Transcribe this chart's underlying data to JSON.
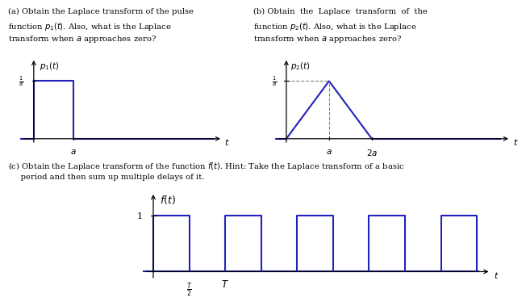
{
  "bg_color": "#ffffff",
  "text_color": "#000000",
  "plot_color": "#2222bb",
  "fig_width": 7.0,
  "fig_height": 3.57,
  "text_a_line1": "(a) Obtain the Laplace transform of the pulse",
  "text_a_line2": "function $p_1(t)$. Also, what is the Laplace",
  "text_a_line3": "transform when $a$ approaches zero?",
  "text_b_line1": "(b) Obtain  the  Laplace  transform  of  the",
  "text_b_line2": "function $p_2(t)$. Also, what is the Laplace",
  "text_b_line3": "transform when $a$ approaches zero?",
  "text_c_line1": "(c) Obtain the Laplace transform of the function $f(t)$. Hint: Take the Laplace transform of a basic",
  "text_c_line2": "     period and then sum up multiple delays of it.",
  "label_p1": "$p_1(t)$",
  "label_p2": "$p_2(t)$",
  "label_ft": "$f(t)$",
  "label_t": "$t$",
  "label_a_p1": "$a$",
  "label_a_p2": "$a$",
  "label_2a_p2": "$2a$",
  "label_T2": "$\\frac{T}{2}$",
  "label_T": "$T$",
  "label_1_a": "$\\frac{1}{a}$",
  "label_1": "1"
}
